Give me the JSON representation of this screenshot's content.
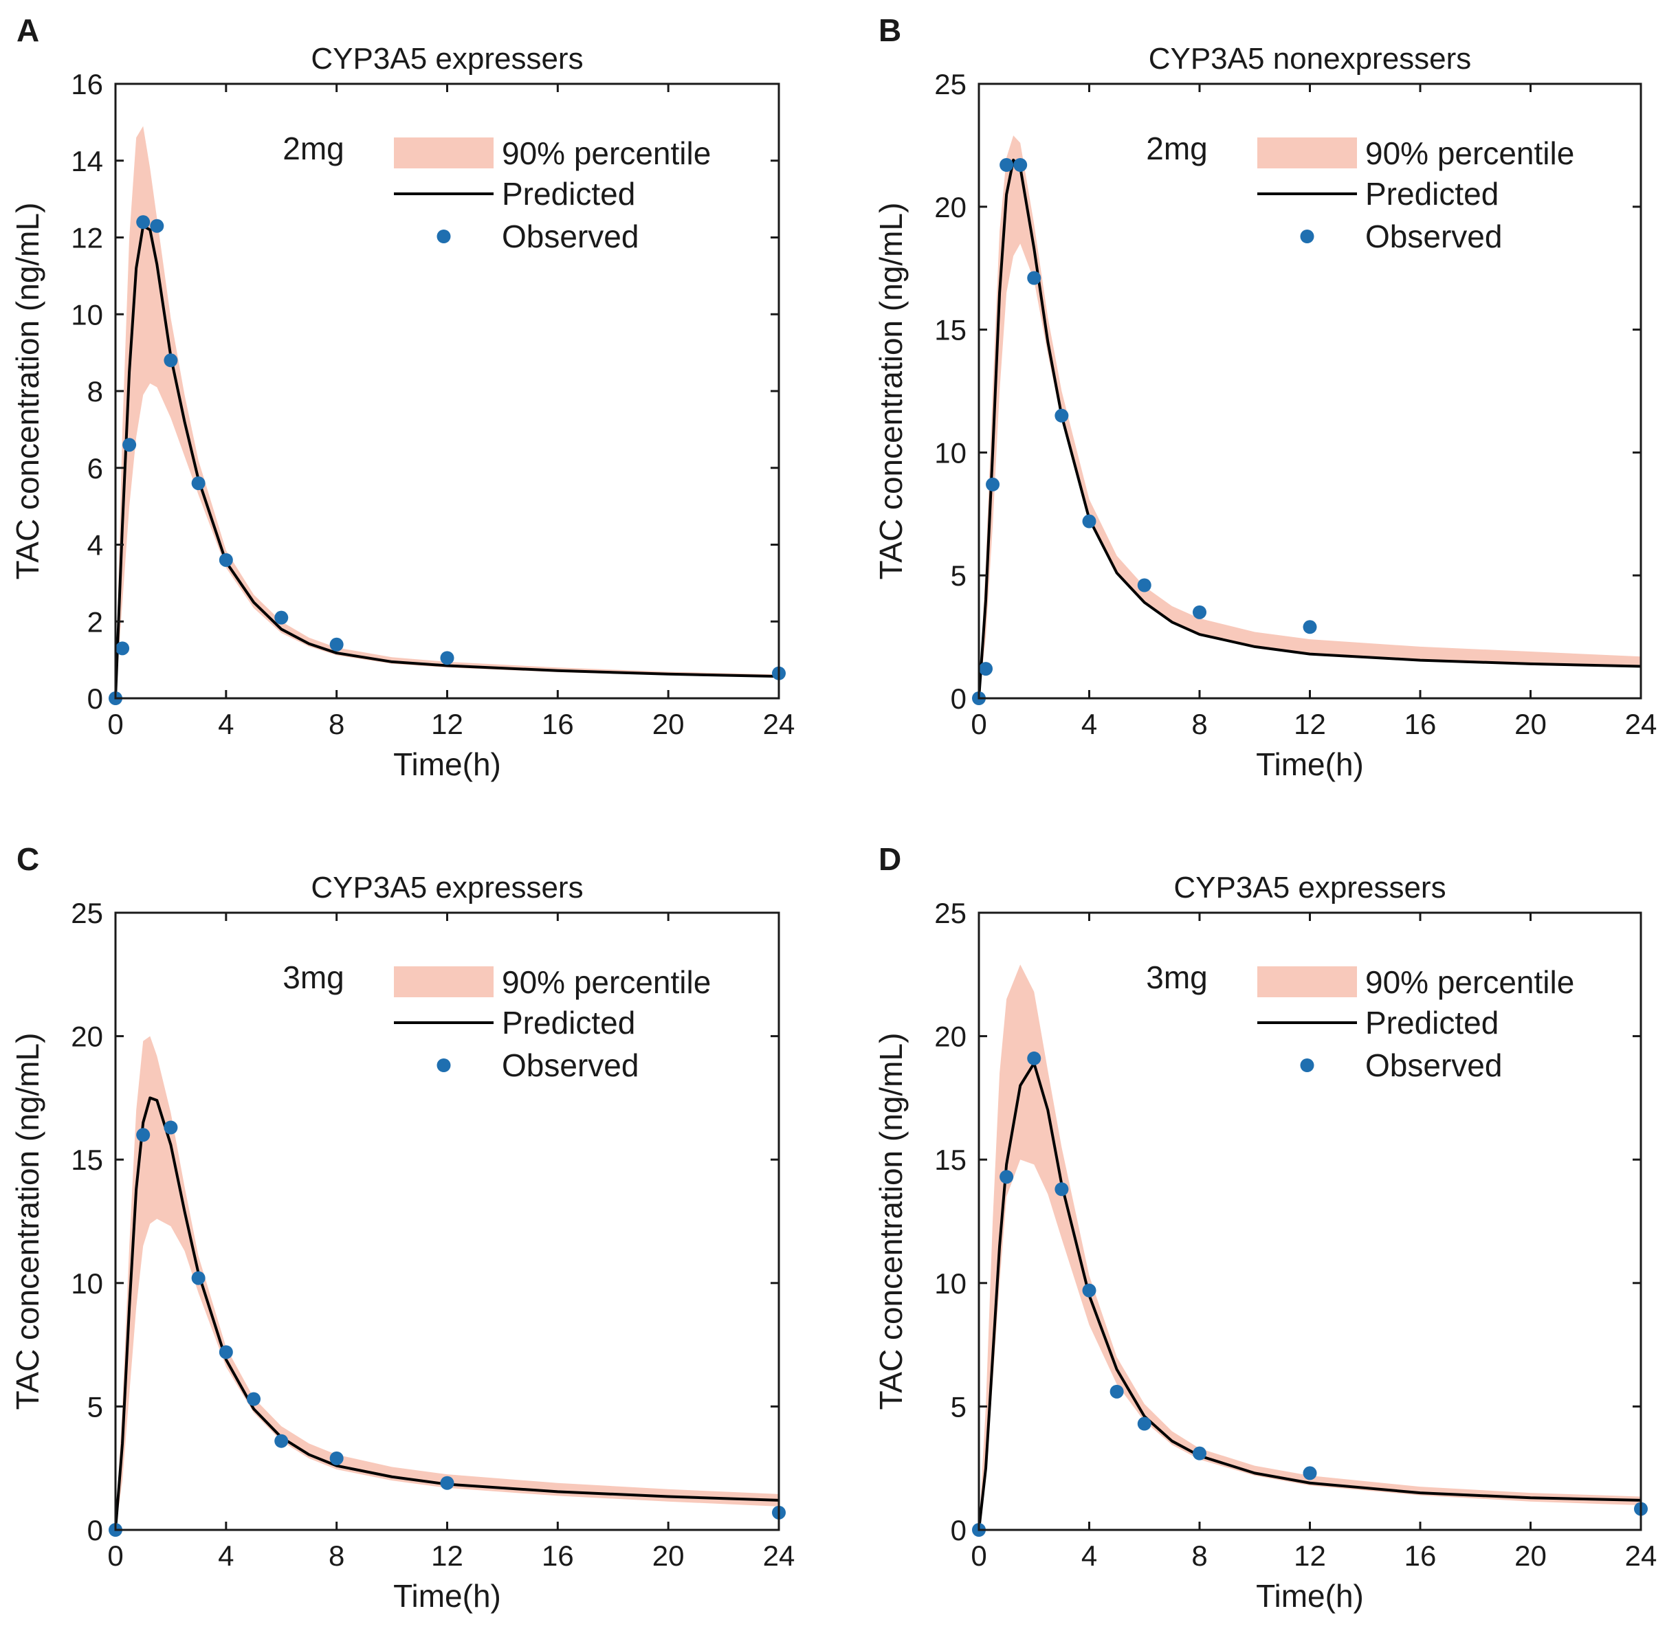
{
  "figure_title": "",
  "chart_data": [
    {
      "panel": "A",
      "type": "line",
      "title": "CYP3A5 expressers",
      "dose": "2mg",
      "xlabel": "Time(h)",
      "ylabel": "TAC concentration (ng/mL)",
      "xlim": [
        0,
        24
      ],
      "ylim": [
        0,
        16
      ],
      "xticks": [
        0,
        4,
        8,
        12,
        16,
        20,
        24
      ],
      "yticks": [
        0,
        2,
        4,
        6,
        8,
        10,
        12,
        14,
        16
      ],
      "legend": {
        "band": "90% percentile",
        "line": "Predicted",
        "points": "Observed",
        "position": "top-right"
      },
      "colors": {
        "band": "#f8c9bb",
        "line": "#000000",
        "points": "#1f6fb0"
      },
      "observed": {
        "x": [
          0,
          0.25,
          0.5,
          1,
          1.5,
          2,
          3,
          4,
          6,
          8,
          12,
          24
        ],
        "y": [
          0,
          1.3,
          6.6,
          12.4,
          12.3,
          8.8,
          5.6,
          3.6,
          2.1,
          1.4,
          1.05,
          0.65
        ]
      },
      "predicted": {
        "x": [
          0,
          0.25,
          0.5,
          0.75,
          1,
          1.25,
          1.5,
          2,
          2.5,
          3,
          4,
          5,
          6,
          7,
          8,
          10,
          12,
          16,
          20,
          24
        ],
        "y": [
          0,
          4.5,
          8.5,
          11.2,
          12.3,
          12.2,
          11.3,
          8.9,
          7.2,
          5.7,
          3.55,
          2.5,
          1.8,
          1.42,
          1.18,
          0.95,
          0.85,
          0.72,
          0.63,
          0.57
        ]
      },
      "band": {
        "x": [
          0,
          0.25,
          0.5,
          0.75,
          1,
          1.25,
          1.5,
          2,
          2.5,
          3,
          4,
          5,
          6,
          7,
          8,
          10,
          12,
          16,
          20,
          24
        ],
        "lower": [
          0,
          2.5,
          5.0,
          6.8,
          7.9,
          8.2,
          8.1,
          7.3,
          6.3,
          5.3,
          3.4,
          2.35,
          1.7,
          1.35,
          1.12,
          0.9,
          0.8,
          0.68,
          0.6,
          0.54
        ],
        "upper": [
          0,
          7.0,
          12.0,
          14.6,
          14.9,
          13.8,
          12.5,
          9.9,
          7.9,
          6.2,
          3.85,
          2.7,
          2.0,
          1.58,
          1.32,
          1.07,
          0.95,
          0.8,
          0.69,
          0.62
        ]
      }
    },
    {
      "panel": "B",
      "type": "line",
      "title": "CYP3A5 nonexpressers",
      "dose": "2mg",
      "xlabel": "Time(h)",
      "ylabel": "TAC concentration (ng/mL)",
      "xlim": [
        0,
        24
      ],
      "ylim": [
        0,
        25
      ],
      "xticks": [
        0,
        4,
        8,
        12,
        16,
        20,
        24
      ],
      "yticks": [
        0,
        5,
        10,
        15,
        20,
        25
      ],
      "legend": {
        "band": "90% percentile",
        "line": "Predicted",
        "points": "Observed",
        "position": "top-right"
      },
      "colors": {
        "band": "#f8c9bb",
        "line": "#000000",
        "points": "#1f6fb0"
      },
      "observed": {
        "x": [
          0,
          0.25,
          0.5,
          1,
          1.5,
          2,
          3,
          4,
          6,
          8,
          12
        ],
        "y": [
          0,
          1.2,
          8.7,
          21.7,
          21.7,
          17.1,
          11.5,
          7.2,
          4.6,
          3.5,
          2.9
        ]
      },
      "predicted": {
        "x": [
          0,
          0.25,
          0.5,
          0.75,
          1,
          1.25,
          1.5,
          2,
          2.5,
          3,
          4,
          5,
          6,
          7,
          8,
          10,
          12,
          16,
          20,
          24
        ],
        "y": [
          0,
          4.0,
          10.0,
          16.5,
          20.5,
          21.9,
          21.6,
          18.3,
          14.5,
          11.5,
          7.3,
          5.1,
          3.9,
          3.1,
          2.6,
          2.1,
          1.8,
          1.55,
          1.4,
          1.3
        ]
      },
      "band": {
        "x": [
          0,
          0.25,
          0.5,
          0.75,
          1,
          1.25,
          1.5,
          2,
          2.5,
          3,
          4,
          5,
          6,
          7,
          8,
          10,
          12,
          16,
          20,
          24
        ],
        "lower": [
          0,
          2.5,
          7.0,
          12.5,
          16.5,
          18.0,
          18.5,
          17.0,
          14.0,
          11.3,
          7.2,
          5.05,
          3.85,
          3.05,
          2.55,
          2.05,
          1.75,
          1.5,
          1.35,
          1.25
        ],
        "upper": [
          0,
          5.5,
          12.5,
          19.0,
          22.0,
          22.9,
          22.6,
          19.3,
          15.5,
          12.5,
          8.1,
          5.8,
          4.55,
          3.75,
          3.25,
          2.7,
          2.4,
          2.1,
          1.9,
          1.7
        ]
      }
    },
    {
      "panel": "C",
      "type": "line",
      "title": "CYP3A5 expressers",
      "dose": "3mg",
      "xlabel": "Time(h)",
      "ylabel": "TAC concentration (ng/mL)",
      "xlim": [
        0,
        24
      ],
      "ylim": [
        0,
        25
      ],
      "xticks": [
        0,
        4,
        8,
        12,
        16,
        20,
        24
      ],
      "yticks": [
        0,
        5,
        10,
        15,
        20,
        25
      ],
      "legend": {
        "band": "90% percentile",
        "line": "Predicted",
        "points": "Observed",
        "position": "top-right"
      },
      "colors": {
        "band": "#f8c9bb",
        "line": "#000000",
        "points": "#1f6fb0"
      },
      "observed": {
        "x": [
          0,
          1,
          2,
          3,
          4,
          5,
          6,
          8,
          12,
          24
        ],
        "y": [
          0,
          16.0,
          16.3,
          10.2,
          7.2,
          5.3,
          3.6,
          2.9,
          1.9,
          0.7
        ]
      },
      "predicted": {
        "x": [
          0,
          0.25,
          0.5,
          0.75,
          1,
          1.25,
          1.5,
          2,
          2.5,
          3,
          4,
          5,
          6,
          7,
          8,
          10,
          12,
          16,
          20,
          24
        ],
        "y": [
          0,
          3.5,
          9.0,
          13.8,
          16.5,
          17.5,
          17.4,
          15.6,
          12.9,
          10.4,
          6.9,
          4.9,
          3.75,
          3.05,
          2.6,
          2.15,
          1.85,
          1.55,
          1.35,
          1.2
        ]
      },
      "band": {
        "x": [
          0,
          0.25,
          0.5,
          0.75,
          1,
          1.25,
          1.5,
          2,
          2.5,
          3,
          4,
          5,
          6,
          7,
          8,
          10,
          12,
          16,
          20,
          24
        ],
        "lower": [
          0,
          2.0,
          5.5,
          9.0,
          11.5,
          12.4,
          12.6,
          12.3,
          11.3,
          9.6,
          6.6,
          4.75,
          3.6,
          2.9,
          2.45,
          2.0,
          1.7,
          1.38,
          1.15,
          0.95
        ],
        "upper": [
          0,
          5.0,
          11.5,
          17.0,
          19.8,
          20.0,
          19.2,
          16.9,
          13.9,
          11.1,
          7.4,
          5.35,
          4.2,
          3.5,
          3.05,
          2.55,
          2.25,
          1.9,
          1.65,
          1.45
        ]
      }
    },
    {
      "panel": "D",
      "type": "line",
      "title": "CYP3A5 expressers",
      "dose": "3mg",
      "xlabel": "Time(h)",
      "ylabel": "TAC concentration (ng/mL)",
      "xlim": [
        0,
        24
      ],
      "ylim": [
        0,
        25
      ],
      "xticks": [
        0,
        4,
        8,
        12,
        16,
        20,
        24
      ],
      "yticks": [
        0,
        5,
        10,
        15,
        20,
        25
      ],
      "legend": {
        "band": "90% percentile",
        "line": "Predicted",
        "points": "Observed",
        "position": "top-right"
      },
      "colors": {
        "band": "#f8c9bb",
        "line": "#000000",
        "points": "#1f6fb0"
      },
      "observed": {
        "x": [
          0,
          1,
          2,
          3,
          4,
          5,
          6,
          8,
          12,
          24
        ],
        "y": [
          0,
          14.3,
          19.1,
          13.8,
          9.7,
          5.6,
          4.3,
          3.1,
          2.3,
          0.85
        ]
      },
      "predicted": {
        "x": [
          0,
          0.25,
          0.5,
          0.75,
          1,
          1.5,
          2,
          2.5,
          3,
          4,
          5,
          6,
          7,
          8,
          10,
          12,
          16,
          20,
          24
        ],
        "y": [
          0,
          2.5,
          7.0,
          11.5,
          14.8,
          18.0,
          18.9,
          17.0,
          14.0,
          9.5,
          6.5,
          4.6,
          3.6,
          3.0,
          2.3,
          1.9,
          1.5,
          1.3,
          1.2
        ]
      },
      "band": {
        "x": [
          0,
          0.25,
          0.5,
          0.75,
          1,
          1.5,
          2,
          2.5,
          3,
          4,
          5,
          6,
          7,
          8,
          10,
          12,
          16,
          20,
          24
        ],
        "lower": [
          0,
          2.0,
          6.0,
          10.0,
          13.5,
          15.0,
          14.8,
          13.6,
          11.8,
          8.3,
          5.9,
          4.4,
          3.45,
          2.85,
          2.2,
          1.8,
          1.4,
          1.15,
          1.0
        ],
        "upper": [
          0,
          5.0,
          12.5,
          18.5,
          21.5,
          22.9,
          21.8,
          18.6,
          15.5,
          10.3,
          7.0,
          5.1,
          4.0,
          3.3,
          2.6,
          2.2,
          1.75,
          1.5,
          1.35
        ]
      }
    }
  ]
}
